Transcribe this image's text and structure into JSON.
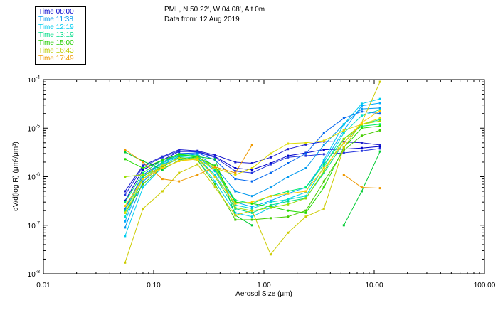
{
  "header": {
    "location": "PML, N 50 22', W 04 08', Alt 0m",
    "date_line": "Data from: 12 Aug 2019"
  },
  "chart_data": {
    "type": "line",
    "xscale": "log",
    "yscale": "log",
    "xlim": [
      0.01,
      100
    ],
    "ylim": [
      1e-08,
      0.0001
    ],
    "xlabel": "Aerosol Size (μm)",
    "ylabel": "dV/d(log R) (μm³/μm³)",
    "xticks": [
      {
        "value": 0.01,
        "label": "0.01"
      },
      {
        "value": 0.1,
        "label": "0.10"
      },
      {
        "value": 1,
        "label": "1.00"
      },
      {
        "value": 10,
        "label": "10.00"
      },
      {
        "value": 100,
        "label": "100.00"
      }
    ],
    "yticks": [
      {
        "value": 1e-08,
        "exp": "-8"
      },
      {
        "value": 1e-07,
        "exp": "-7"
      },
      {
        "value": 1e-06,
        "exp": "-6"
      },
      {
        "value": 1e-05,
        "exp": "-5"
      },
      {
        "value": 0.0001,
        "exp": "-4"
      }
    ],
    "x": [
      0.055,
      0.08,
      0.12,
      0.17,
      0.25,
      0.36,
      0.55,
      0.78,
      1.15,
      1.65,
      2.4,
      3.5,
      5.3,
      7.7,
      11.3
    ],
    "series": [
      {
        "name": "Time 08:00",
        "color": "#0000cc",
        "values": [
          3.2e-07,
          1.4e-06,
          2.2e-06,
          3.3e-06,
          3.3e-06,
          2.6e-06,
          1.5e-06,
          1.4e-06,
          1.9e-06,
          2.7e-06,
          3.1e-06,
          3.6e-06,
          3.7e-06,
          3.9e-06,
          4.2e-06
        ]
      },
      {
        "name": "Time 08:00",
        "color": "#1a1acc",
        "values": [
          5e-07,
          1.7e-06,
          2.6e-06,
          3.6e-06,
          3.4e-06,
          2.8e-06,
          2e-06,
          1.9e-06,
          2.5e-06,
          3.7e-06,
          4.6e-06,
          5.3e-06,
          5.2e-06,
          5e-06,
          4.5e-06
        ]
      },
      {
        "name": "Time 08:00",
        "color": "#2233dd",
        "values": [
          4.2e-07,
          1.6e-06,
          2.5e-06,
          3.4e-06,
          3.2e-06,
          2.5e-06,
          1.3e-06,
          1.2e-06,
          1.8e-06,
          2.5e-06,
          2.7e-06,
          2.9e-06,
          3.1e-06,
          3.4e-06,
          3.8e-06
        ]
      },
      {
        "name": "Time 11:38",
        "color": "#0066ee",
        "values": [
          2.2e-07,
          1.1e-06,
          2e-06,
          3e-06,
          3.1e-06,
          2.2e-06,
          9e-07,
          8e-07,
          1.2e-06,
          1.9e-06,
          3e-06,
          8e-06,
          1.6e-05,
          2.2e-05,
          2e-05
        ]
      },
      {
        "name": "Time 11:38",
        "color": "#0099ee",
        "values": [
          9e-08,
          8e-07,
          1.7e-06,
          2.7e-06,
          2.9e-06,
          1.6e-06,
          5e-07,
          4e-07,
          6e-07,
          1e-06,
          1.5e-06,
          4.5e-06,
          1.2e-05,
          2.5e-05,
          2.6e-05
        ]
      },
      {
        "name": "Time 11:38",
        "color": "#00aaff",
        "values": [
          1.2e-07,
          1e-06,
          1.9e-06,
          2.8e-06,
          2.6e-06,
          1.3e-06,
          3e-07,
          2.4e-07,
          3.2e-07,
          4.5e-07,
          6e-07,
          2e-06,
          9e-06,
          2.9e-05,
          3.3e-05
        ]
      },
      {
        "name": "Time 12:19",
        "color": "#00ccee",
        "values": [
          6e-08,
          6e-07,
          1.6e-06,
          2.4e-06,
          2.2e-06,
          8e-07,
          1.8e-07,
          1.5e-07,
          2.3e-07,
          3.5e-07,
          4.8e-07,
          2.2e-06,
          1.2e-05,
          3.2e-05,
          4e-05
        ]
      },
      {
        "name": "Time 12:19",
        "color": "#00ddcc",
        "values": [
          1.5e-07,
          9e-07,
          1.8e-06,
          2.6e-06,
          2.4e-06,
          1.1e-06,
          2.6e-07,
          2.2e-07,
          3e-07,
          3.4e-07,
          4e-07,
          1.6e-06,
          8e-06,
          1.8e-05,
          2.4e-05
        ]
      },
      {
        "name": "Time 13:19",
        "color": "#00dd88",
        "values": [
          2e-07,
          1e-06,
          2e-06,
          2.8e-06,
          2.5e-06,
          1e-06,
          2.2e-07,
          1.8e-07,
          2.6e-07,
          3.1e-07,
          3.6e-07,
          1.2e-06,
          5e-06,
          1.2e-05,
          1.5e-05
        ]
      },
      {
        "name": "Time 13:19",
        "color": "#00ee66",
        "values": [
          3e-07,
          1.2e-06,
          2.2e-06,
          2.9e-06,
          2.7e-06,
          1.4e-06,
          3.3e-07,
          2.8e-07,
          4e-07,
          5e-07,
          6e-07,
          1.8e-06,
          6e-06,
          1.1e-05,
          1.2e-05
        ]
      },
      {
        "name": "Time 15:00",
        "color": "#00cc33",
        "values": [
          3.2e-06,
          2.1e-06,
          1.4e-06,
          2.2e-06,
          2.6e-06,
          2.3e-06,
          1.6e-07,
          1e-07,
          null,
          null,
          null,
          null,
          1e-07,
          5e-07,
          3.3e-06
        ]
      },
      {
        "name": "Time 15:00",
        "color": "#22dd00",
        "values": [
          2.3e-06,
          1.5e-06,
          2.2e-06,
          2.9e-06,
          2.5e-06,
          1.7e-06,
          3e-07,
          2.8e-07,
          2.4e-07,
          2e-07,
          1.8e-07,
          6e-07,
          4e-06,
          1e-05,
          1.1e-05
        ]
      },
      {
        "name": "Time 15:00",
        "color": "#44cc00",
        "values": [
          1.8e-07,
          7e-07,
          1.6e-06,
          2.5e-06,
          2.2e-06,
          7e-07,
          1.3e-07,
          1.3e-07,
          1.4e-07,
          1.5e-07,
          2e-07,
          8e-07,
          3.5e-06,
          7e-06,
          9e-06
        ]
      },
      {
        "name": "Time 16:43",
        "color": "#99dd00",
        "values": [
          1e-06,
          1.1e-06,
          1.5e-06,
          2.1e-06,
          2.5e-06,
          1.6e-06,
          2.3e-07,
          2e-07,
          2.3e-07,
          2.7e-07,
          3.6e-07,
          1.3e-06,
          6e-06,
          1.2e-05,
          1.4e-05
        ]
      },
      {
        "name": "Time 16:43",
        "color": "#cccc00",
        "values": [
          1.7e-08,
          2.2e-07,
          5e-07,
          1.2e-06,
          1.8e-06,
          6e-07,
          1.6e-07,
          2e-07,
          2.5e-08,
          7e-08,
          1.5e-07,
          2.2e-07,
          4e-06,
          1.3e-05,
          9e-05
        ]
      },
      {
        "name": "Time 16:43",
        "color": "#dddd00",
        "values": [
          1.8e-07,
          9e-07,
          1.7e-06,
          2.4e-06,
          2.2e-06,
          1.5e-06,
          1.1e-06,
          1.5e-06,
          3e-06,
          4.8e-06,
          5e-06,
          5.5e-06,
          9e-06,
          1.2e-05,
          1.6e-05
        ]
      },
      {
        "name": "Time 17:49",
        "color": "#ee9900",
        "values": [
          3.6e-06,
          2e-06,
          9e-07,
          8e-07,
          1.1e-06,
          1.6e-06,
          1.2e-06,
          4.5e-06,
          null,
          null,
          null,
          null,
          1.1e-06,
          6e-07,
          5.8e-07
        ]
      },
      {
        "name": "Time 17:49",
        "color": "#ffcc00",
        "values": [
          2.5e-07,
          9e-07,
          1.5e-06,
          2.1e-06,
          2.3e-06,
          1e-06,
          2.8e-07,
          3e-07,
          4e-07,
          4.5e-07,
          5e-07,
          1.5e-06,
          5e-06,
          1.3e-05,
          2.3e-05
        ]
      }
    ]
  },
  "legend": {
    "items": [
      {
        "label": "Time 08:00",
        "color": "#0000cc"
      },
      {
        "label": "Time 11:38",
        "color": "#0099ee"
      },
      {
        "label": "Time 12:19",
        "color": "#00ccee"
      },
      {
        "label": "Time 13:19",
        "color": "#00dd88"
      },
      {
        "label": "Time 15:00",
        "color": "#22cc00"
      },
      {
        "label": "Time 16:43",
        "color": "#bbcc00"
      },
      {
        "label": "Time 17:49",
        "color": "#ee9900"
      }
    ]
  }
}
